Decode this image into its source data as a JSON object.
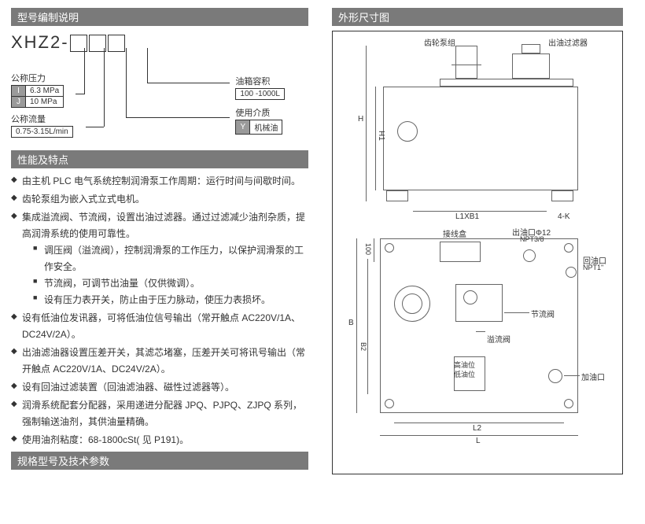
{
  "sections": {
    "model_desc": "型号编制说明",
    "features": "性能及特点",
    "dimensions": "外形尺寸图",
    "spec_table": "规格型号及技术参数"
  },
  "model": {
    "code_prefix": "XHZ2-",
    "pressure_label": "公称压力",
    "pressure_rows": [
      {
        "code": "I",
        "value": "6.3 MPa"
      },
      {
        "code": "J",
        "value": "10 MPa"
      }
    ],
    "flow_label": "公称流量",
    "flow_value": "0.75-3.15L/min",
    "tank_label": "油箱容积",
    "tank_value": "100 -1000L",
    "medium_label": "使用介质",
    "medium_code": "Y",
    "medium_value": "机械油"
  },
  "features": [
    {
      "t": "由主机 PLC 电气系统控制润滑泵工作周期：运行时间与间歇时间。"
    },
    {
      "t": "齿轮泵组为嵌入式立式电机。"
    },
    {
      "t": "集成溢流阀、节流阀，设置出油过滤器。通过过滤减少油剂杂质，提高润滑系统的使用可靠性。",
      "sub": [
        "调压阀（溢流阀），控制润滑泵的工作压力，以保护润滑泵的工作安全。",
        "节流阀，可调节出油量（仅供微调）。",
        "设有压力表开关，防止由于压力脉动，使压力表损坏。"
      ]
    },
    {
      "t": "设有低油位发讯器，可将低油位信号输出（常开触点 AC220V/1A、DC24V/2A）。"
    },
    {
      "t": "出油滤油器设置压差开关，其滤芯堵塞，压差开关可将讯号输出（常开触点 AC220V/1A、DC24V/2A）。"
    },
    {
      "t": "设有回油过滤装置（回油滤油器、磁性过滤器等）。"
    },
    {
      "t": "润滑系统配套分配器，采用递进分配器 JPQ、PJPQ、ZJPQ 系列，强制输送油剂，其供油量精确。"
    },
    {
      "t": "使用油剂粘度：68-1800cSt( 见 P191)。"
    }
  ],
  "drawing": {
    "labels": {
      "gear_pump": "齿轮泵组",
      "out_filter": "出油过滤器",
      "H": "H",
      "H1": "H1",
      "L1xB1": "L1XB1",
      "K4": "4-K",
      "junction_box": "接线盒",
      "out_port": "出油口Φ12",
      "npt38": "NPT3/8",
      "return_port": "回油口",
      "npt1": "NPT1\"",
      "throttle": "节流阀",
      "relief": "溢流阀",
      "hi_level": "高油位",
      "lo_level": "低油位",
      "fill_port": "加油口",
      "B": "B",
      "B2": "B2",
      "L2": "L2",
      "L": "L",
      "h100": "100"
    },
    "colors": {
      "stroke": "#666666",
      "text": "#333333"
    }
  }
}
